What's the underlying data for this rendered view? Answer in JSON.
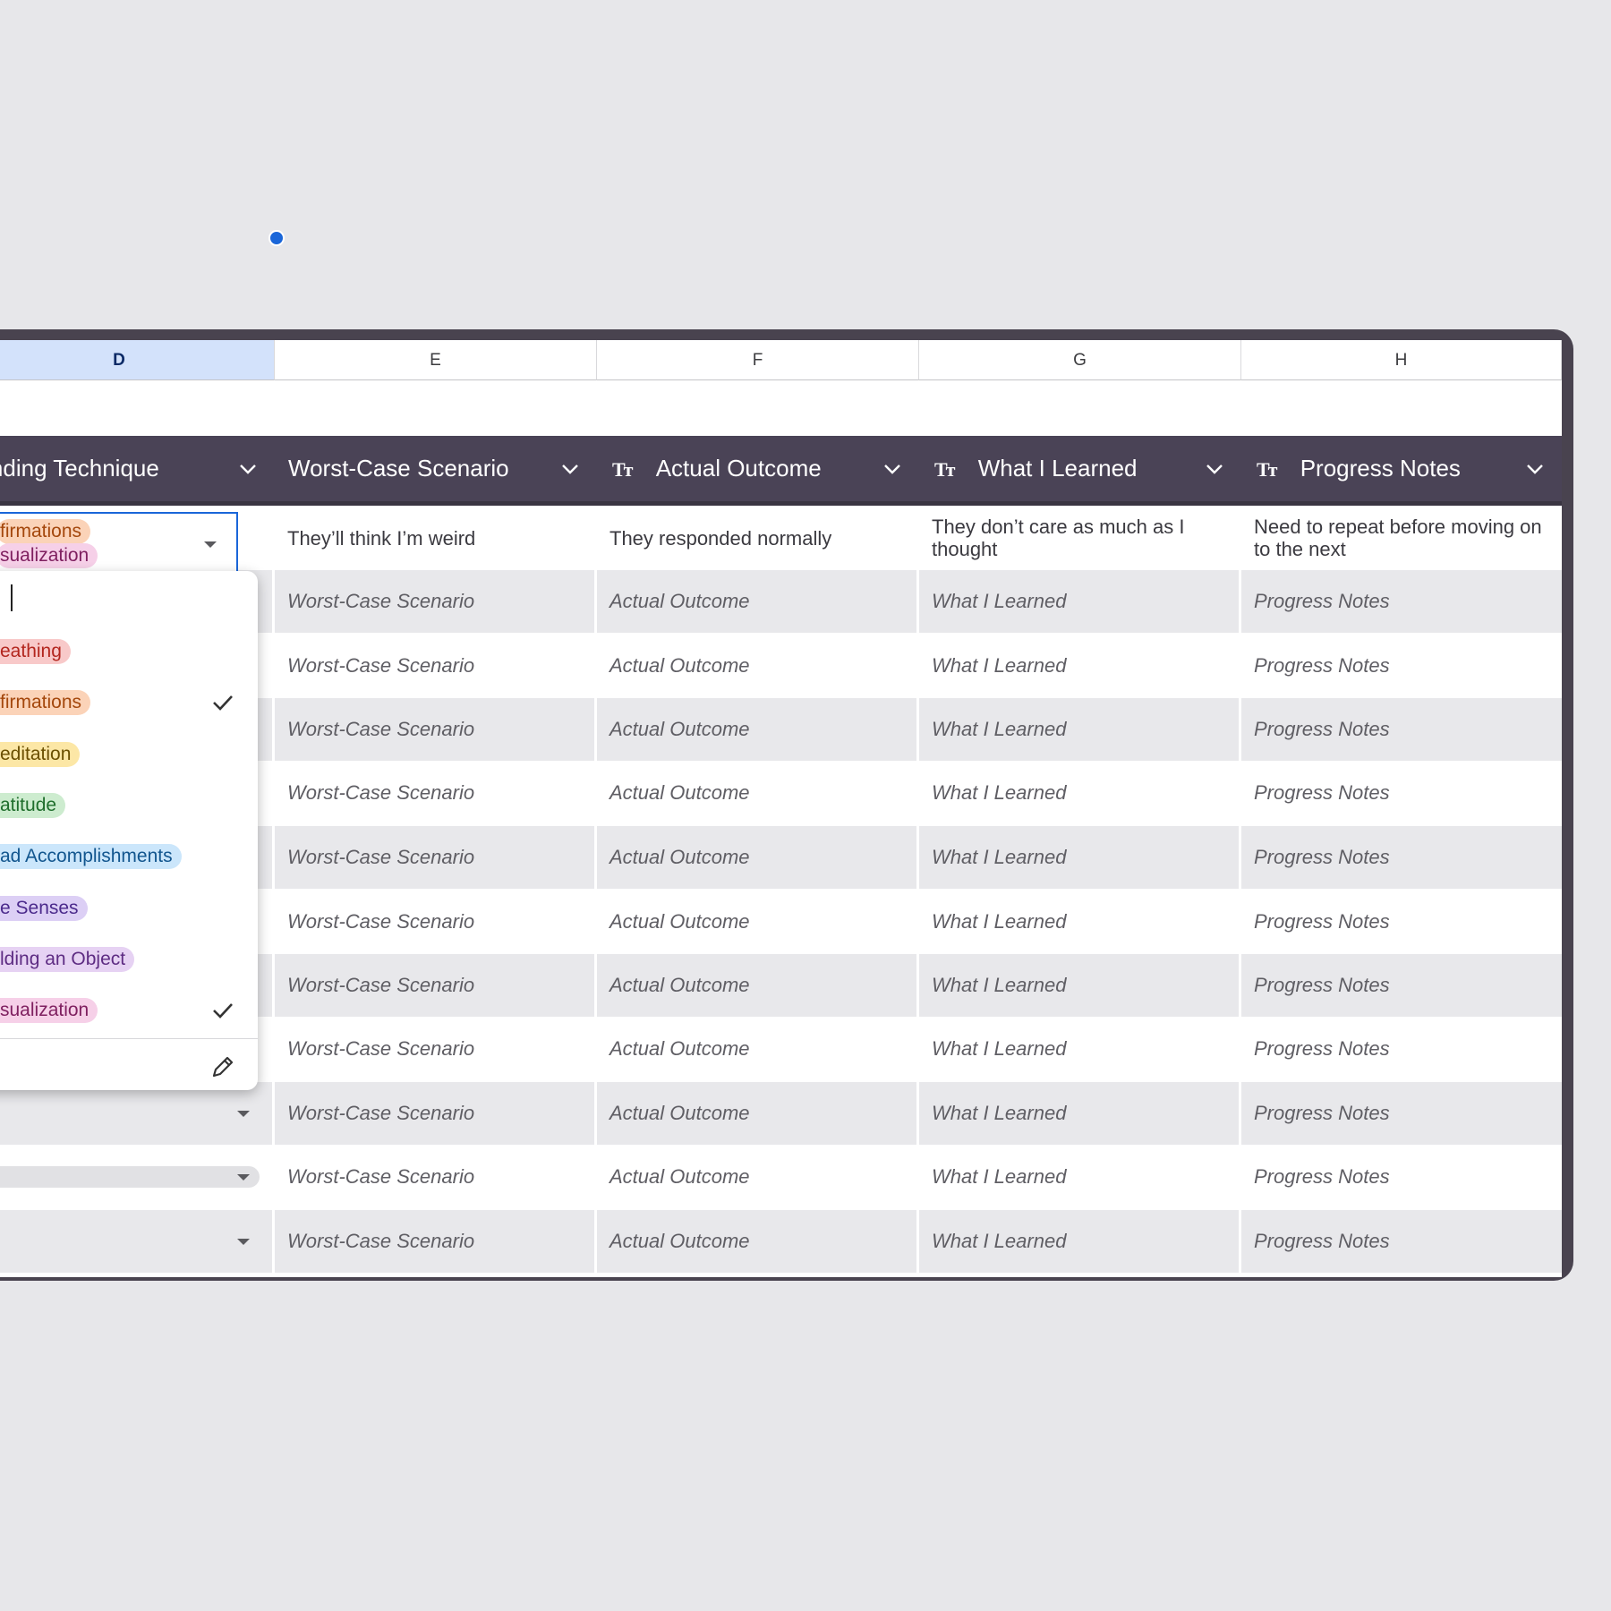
{
  "column_letters": [
    "D",
    "E",
    "F",
    "G",
    "H"
  ],
  "headers": {
    "d": "ounding Technique",
    "e": "Worst-Case Scenario",
    "f": "Actual Outcome",
    "g": "What I Learned",
    "h": "Progress Notes",
    "text_type_icon": "Tт"
  },
  "first_row": {
    "d_chips": [
      "firmations",
      "sualization"
    ],
    "e": "They’ll think I’m weird",
    "f": "They responded normally",
    "g": "They don’t care as much as I thought",
    "h": "Need to repeat before moving on to the next"
  },
  "placeholders": {
    "e": "Worst-Case Scenario",
    "f": "Actual Outcome",
    "g": "What I Learned",
    "h": "Progress Notes"
  },
  "dropdown": {
    "options": [
      {
        "label": "eathing",
        "bg": "#f8c9c9",
        "fg": "#b3261e",
        "checked": false
      },
      {
        "label": "firmations",
        "bg": "#fbd3b8",
        "fg": "#a4470c",
        "checked": true
      },
      {
        "label": "editation",
        "bg": "#fce7a6",
        "fg": "#6b4f00",
        "checked": false
      },
      {
        "label": "atitude",
        "bg": "#cdeccf",
        "fg": "#1f6e2c",
        "checked": false
      },
      {
        "label": "ad Accomplishments",
        "bg": "#cbe6fb",
        "fg": "#12568f",
        "checked": false
      },
      {
        "label": "e Senses",
        "bg": "#dccff5",
        "fg": "#4b2a8c",
        "checked": false
      },
      {
        "label": "lding an Object",
        "bg": "#e6d2f3",
        "fg": "#5e2c83",
        "checked": false
      },
      {
        "label": "sualization",
        "bg": "#f6d0e8",
        "fg": "#7f2060",
        "checked": true
      }
    ]
  },
  "colors": {
    "frame": "#49434f",
    "header_band": "#4a4356",
    "selection_blue": "#1a66d9",
    "selected_col_header": "#d3e2fb"
  }
}
